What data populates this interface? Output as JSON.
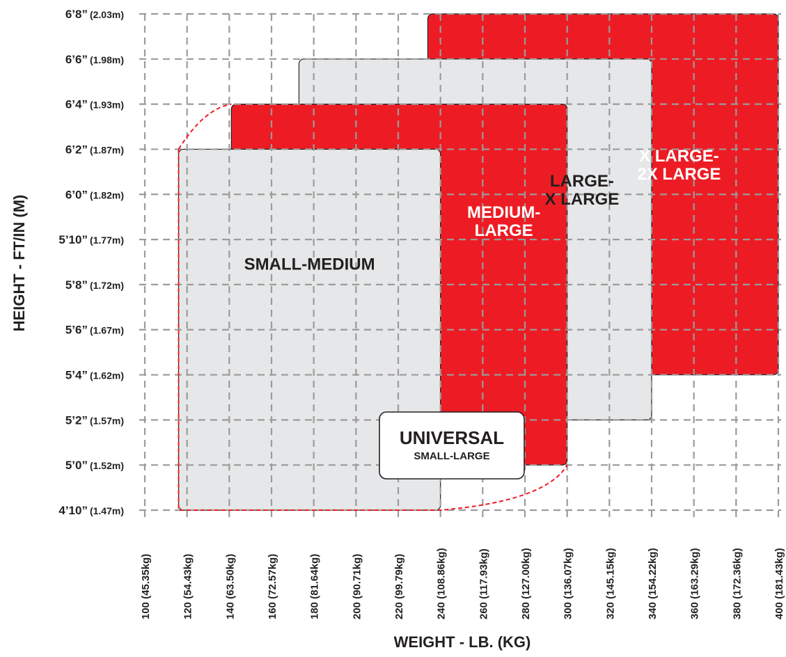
{
  "chart_data": {
    "type": "area",
    "xlabel": "WEIGHT - LB. (KG)",
    "ylabel": "HEIGHT - FT/IN (M)",
    "xlim": [
      100,
      400
    ],
    "ylim": [
      58,
      80
    ],
    "grid": true,
    "x_ticks": [
      {
        "value": 100,
        "label": "100 (45.35kg)"
      },
      {
        "value": 120,
        "label": "120 (54.43kg)"
      },
      {
        "value": 140,
        "label": "140 (63.50kg)"
      },
      {
        "value": 160,
        "label": "160 (72.57kg)"
      },
      {
        "value": 180,
        "label": "180 (81.64kg)"
      },
      {
        "value": 200,
        "label": "200 (90.71kg)"
      },
      {
        "value": 220,
        "label": "220 (99.79kg)"
      },
      {
        "value": 240,
        "label": "240 (108.86kg)"
      },
      {
        "value": 260,
        "label": "260 (117.93kg)"
      },
      {
        "value": 280,
        "label": "280 (127.00kg)"
      },
      {
        "value": 300,
        "label": "300 (136.07kg)"
      },
      {
        "value": 320,
        "label": "320 (145.15kg)"
      },
      {
        "value": 340,
        "label": "340 (154.22kg)"
      },
      {
        "value": 360,
        "label": "360 (163.29kg)"
      },
      {
        "value": 380,
        "label": "380 (172.36kg)"
      },
      {
        "value": 400,
        "label": "400 (181.43kg)"
      }
    ],
    "y_ticks": [
      {
        "value": 80,
        "main": "6’8”",
        "metric": "(2.03m)"
      },
      {
        "value": 78,
        "main": "6’6”",
        "metric": "(1.98m)"
      },
      {
        "value": 76,
        "main": "6’4”",
        "metric": "(1.93m)"
      },
      {
        "value": 74,
        "main": "6’2”",
        "metric": "(1.87m)"
      },
      {
        "value": 72,
        "main": "6’0”",
        "metric": "(1.82m)"
      },
      {
        "value": 70,
        "main": "5’10”",
        "metric": "(1.77m)"
      },
      {
        "value": 68,
        "main": "5’8”",
        "metric": "(1.72m)"
      },
      {
        "value": 66,
        "main": "5’6”",
        "metric": "(1.67m)"
      },
      {
        "value": 64,
        "main": "5’4”",
        "metric": "(1.62m)"
      },
      {
        "value": 62,
        "main": "5’2”",
        "metric": "(1.57m)"
      },
      {
        "value": 60,
        "main": "5’0”",
        "metric": "(1.52m)"
      },
      {
        "value": 58,
        "main": "4’10”",
        "metric": "(1.47m)"
      }
    ],
    "regions": [
      {
        "lines": [
          "X LARGE-",
          "2X LARGE"
        ],
        "x": [
          234,
          400
        ],
        "y": [
          64,
          80
        ],
        "color": "#ed1c24",
        "text_color": "#ffffff",
        "label_at": [
          353,
          73.3
        ]
      },
      {
        "lines": [
          "LARGE-",
          "X LARGE"
        ],
        "x": [
          173,
          340
        ],
        "y": [
          62,
          78
        ],
        "color": "#e6e7e8",
        "text_color": "#231f20",
        "label_at": [
          307,
          72.2
        ]
      },
      {
        "lines": [
          "MEDIUM-",
          "LARGE"
        ],
        "x": [
          141,
          300
        ],
        "y": [
          60,
          76
        ],
        "color": "#ed1c24",
        "text_color": "#ffffff",
        "label_at": [
          270,
          70.8
        ]
      },
      {
        "lines": [
          "SMALL-MEDIUM"
        ],
        "x": [
          116,
          240
        ],
        "y": [
          58,
          74
        ],
        "color": "#e6e7e8",
        "text_color": "#231f20",
        "label_at": [
          178,
          68.9
        ]
      }
    ],
    "universal": {
      "title": "UNIVERSAL",
      "subtitle": "SMALL-LARGE",
      "outline_color": "#ed1c24"
    }
  }
}
